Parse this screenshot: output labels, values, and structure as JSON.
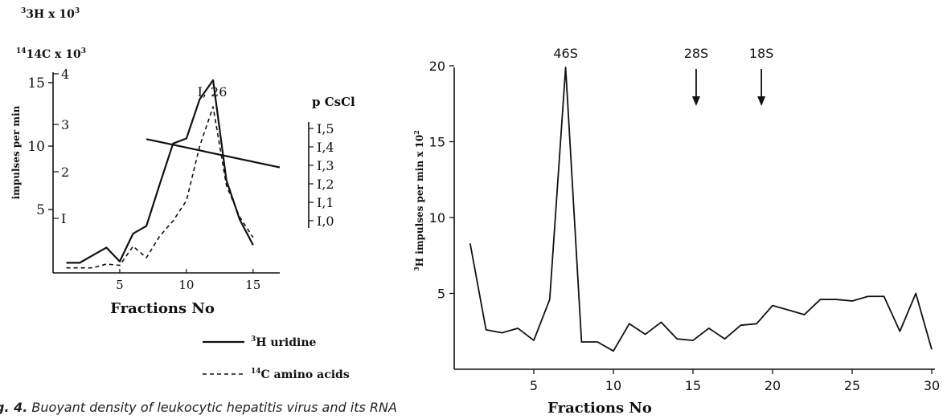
{
  "caption": {
    "label": "g. 4.",
    "text": "Buoyant density of leukocytic hepatitis virus and its RNA"
  },
  "chart_data": [
    {
      "type": "line",
      "left_header_1": "3H x 10",
      "left_header_2": "14C x 10",
      "ylabel": "impulses per min",
      "xlabel": "Fractions No",
      "peak_label": "I, 26",
      "xticks": [
        "5",
        "10",
        "15"
      ],
      "xlim": [
        0,
        17
      ],
      "y1_ticks": [
        "15",
        "10",
        "5"
      ],
      "y1_tick_values": [
        15,
        10,
        5
      ],
      "y1_lim": [
        0,
        16
      ],
      "y2_ticks": [
        "4",
        "3",
        "2",
        "I"
      ],
      "y2_tick_values": [
        4,
        3,
        2,
        1
      ],
      "right_axis_title": "p CsCl",
      "right_axis_ticks": [
        "I,5",
        "I,4",
        "I,3",
        "I,2",
        "I,1",
        "I,0"
      ],
      "right_axis_values": [
        1.5,
        1.4,
        1.3,
        1.2,
        1.1,
        1.0
      ],
      "series": [
        {
          "name": "3H uridine",
          "style": "solid",
          "x": [
            1,
            2,
            4,
            5,
            6,
            7,
            8,
            9,
            10,
            11,
            12,
            13,
            14,
            15
          ],
          "y": [
            0.8,
            0.8,
            2.0,
            0.9,
            3.1,
            3.7,
            7.0,
            10.2,
            10.6,
            13.7,
            15.2,
            7.3,
            4.2,
            2.2
          ]
        },
        {
          "name": "14C amino acids",
          "style": "dashed",
          "x": [
            1,
            2,
            3,
            4,
            5,
            6,
            7,
            8,
            9,
            10,
            11,
            12,
            13,
            14,
            15
          ],
          "y": [
            0.4,
            0.4,
            0.4,
            0.7,
            0.6,
            2.1,
            1.2,
            2.9,
            4.1,
            5.7,
            10.0,
            13.1,
            6.9,
            4.4,
            2.8
          ]
        },
        {
          "name": "density",
          "style": "solid",
          "x": [
            7,
            17
          ],
          "density": [
            1.442,
            1.289
          ]
        }
      ]
    },
    {
      "type": "line",
      "ylabel": "H impulses per min x 10",
      "xlabel": "Fractions No",
      "xticks": [
        "5",
        "10",
        "15",
        "20",
        "25",
        "30"
      ],
      "xlim": [
        0,
        30
      ],
      "yticks": [
        "5",
        "10",
        "15",
        "20"
      ],
      "ylim": [
        0,
        20
      ],
      "annotations": [
        {
          "label": "46S",
          "x": 7
        },
        {
          "label": "28S",
          "x": 15.2,
          "arrow": true
        },
        {
          "label": "18S",
          "x": 19.3,
          "arrow": true
        }
      ],
      "series": [
        {
          "x": [
            1,
            2,
            3,
            4,
            5,
            6,
            7,
            8,
            9,
            10,
            11,
            12,
            13,
            14,
            15,
            16,
            17,
            18,
            19,
            20,
            21,
            22,
            23,
            24,
            25,
            26,
            27,
            28,
            29,
            30
          ],
          "y": [
            8.3,
            2.6,
            2.4,
            2.7,
            1.9,
            4.6,
            19.9,
            1.8,
            1.8,
            1.2,
            3.0,
            2.3,
            3.1,
            2.0,
            1.9,
            2.7,
            2.0,
            2.9,
            3.0,
            4.2,
            3.9,
            3.6,
            4.6,
            4.6,
            4.5,
            4.8,
            4.8,
            2.5,
            5.0,
            1.3
          ]
        }
      ]
    }
  ],
  "legend": [
    {
      "label": "H uridine",
      "superscript": "3",
      "style": "solid"
    },
    {
      "label": "C amino acids",
      "superscript": "14",
      "style": "dashed"
    }
  ]
}
